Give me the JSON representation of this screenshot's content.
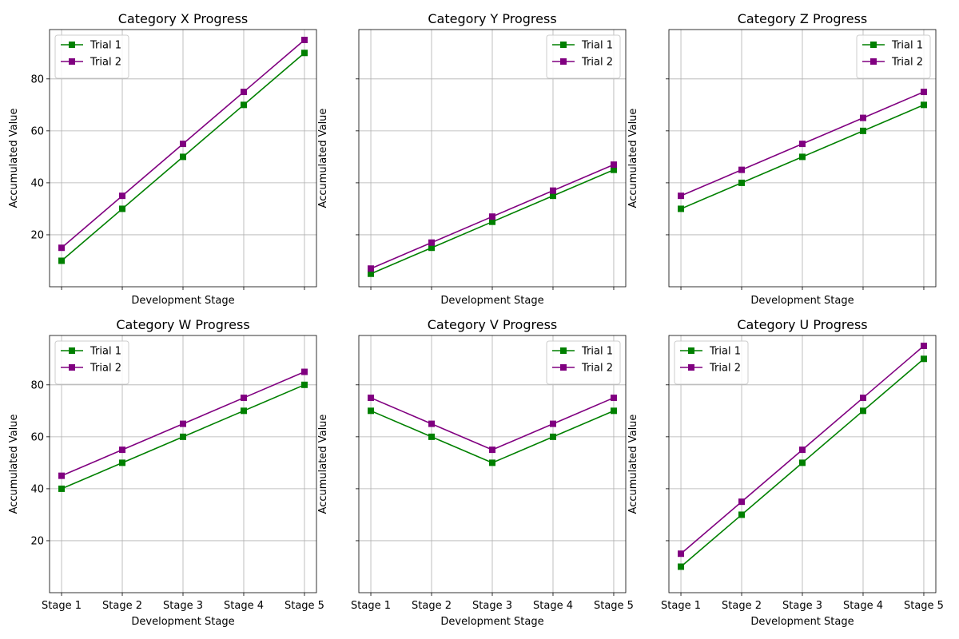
{
  "colors": {
    "trial1": "#008000",
    "trial2": "#800080",
    "grid": "#b0b0b0"
  },
  "chart_data": [
    {
      "type": "line",
      "title": "Category X Progress",
      "categories": [
        "Stage 1",
        "Stage 2",
        "Stage 3",
        "Stage 4",
        "Stage 5"
      ],
      "series": [
        {
          "name": "Trial 1",
          "values": [
            10,
            30,
            50,
            70,
            90
          ]
        },
        {
          "name": "Trial 2",
          "values": [
            15,
            35,
            55,
            75,
            95
          ]
        }
      ],
      "xlabel": "Development Stage",
      "ylabel": "Accumulated Value",
      "ylim": [
        0,
        99
      ],
      "yticks": [
        20,
        40,
        60,
        80
      ],
      "show_y_tick_labels": true,
      "show_x_tick_labels": false,
      "grid": true,
      "legend": "top-left"
    },
    {
      "type": "line",
      "title": "Category Y Progress",
      "categories": [
        "Stage 1",
        "Stage 2",
        "Stage 3",
        "Stage 4",
        "Stage 5"
      ],
      "series": [
        {
          "name": "Trial 1",
          "values": [
            5,
            15,
            25,
            35,
            45
          ]
        },
        {
          "name": "Trial 2",
          "values": [
            7,
            17,
            27,
            37,
            47
          ]
        }
      ],
      "xlabel": "Development Stage",
      "ylabel": "Accumulated Value",
      "ylim": [
        0,
        99
      ],
      "yticks": [
        20,
        40,
        60,
        80
      ],
      "show_y_tick_labels": false,
      "show_x_tick_labels": false,
      "grid": true,
      "legend": "top-right"
    },
    {
      "type": "line",
      "title": "Category Z Progress",
      "categories": [
        "Stage 1",
        "Stage 2",
        "Stage 3",
        "Stage 4",
        "Stage 5"
      ],
      "series": [
        {
          "name": "Trial 1",
          "values": [
            30,
            40,
            50,
            60,
            70
          ]
        },
        {
          "name": "Trial 2",
          "values": [
            35,
            45,
            55,
            65,
            75
          ]
        }
      ],
      "xlabel": "Development Stage",
      "ylabel": "Accumulated Value",
      "ylim": [
        0,
        99
      ],
      "yticks": [
        20,
        40,
        60,
        80
      ],
      "show_y_tick_labels": false,
      "show_x_tick_labels": false,
      "grid": true,
      "legend": "top-right"
    },
    {
      "type": "line",
      "title": "Category W Progress",
      "categories": [
        "Stage 1",
        "Stage 2",
        "Stage 3",
        "Stage 4",
        "Stage 5"
      ],
      "series": [
        {
          "name": "Trial 1",
          "values": [
            40,
            50,
            60,
            70,
            80
          ]
        },
        {
          "name": "Trial 2",
          "values": [
            45,
            55,
            65,
            75,
            85
          ]
        }
      ],
      "xlabel": "Development Stage",
      "ylabel": "Accumulated Value",
      "ylim": [
        0,
        99
      ],
      "yticks": [
        20,
        40,
        60,
        80
      ],
      "show_y_tick_labels": true,
      "show_x_tick_labels": true,
      "grid": true,
      "legend": "top-left"
    },
    {
      "type": "line",
      "title": "Category V Progress",
      "categories": [
        "Stage 1",
        "Stage 2",
        "Stage 3",
        "Stage 4",
        "Stage 5"
      ],
      "series": [
        {
          "name": "Trial 1",
          "values": [
            70,
            60,
            50,
            60,
            70
          ]
        },
        {
          "name": "Trial 2",
          "values": [
            75,
            65,
            55,
            65,
            75
          ]
        }
      ],
      "xlabel": "Development Stage",
      "ylabel": "Accumulated Value",
      "ylim": [
        0,
        99
      ],
      "yticks": [
        20,
        40,
        60,
        80
      ],
      "show_y_tick_labels": false,
      "show_x_tick_labels": true,
      "grid": true,
      "legend": "top-right"
    },
    {
      "type": "line",
      "title": "Category U Progress",
      "categories": [
        "Stage 1",
        "Stage 2",
        "Stage 3",
        "Stage 4",
        "Stage 5"
      ],
      "series": [
        {
          "name": "Trial 1",
          "values": [
            10,
            30,
            50,
            70,
            90
          ]
        },
        {
          "name": "Trial 2",
          "values": [
            15,
            35,
            55,
            75,
            95
          ]
        }
      ],
      "xlabel": "Development Stage",
      "ylabel": "Accumulated Value",
      "ylim": [
        0,
        99
      ],
      "yticks": [
        20,
        40,
        60,
        80
      ],
      "show_y_tick_labels": false,
      "show_x_tick_labels": true,
      "grid": true,
      "legend": "top-left"
    }
  ]
}
